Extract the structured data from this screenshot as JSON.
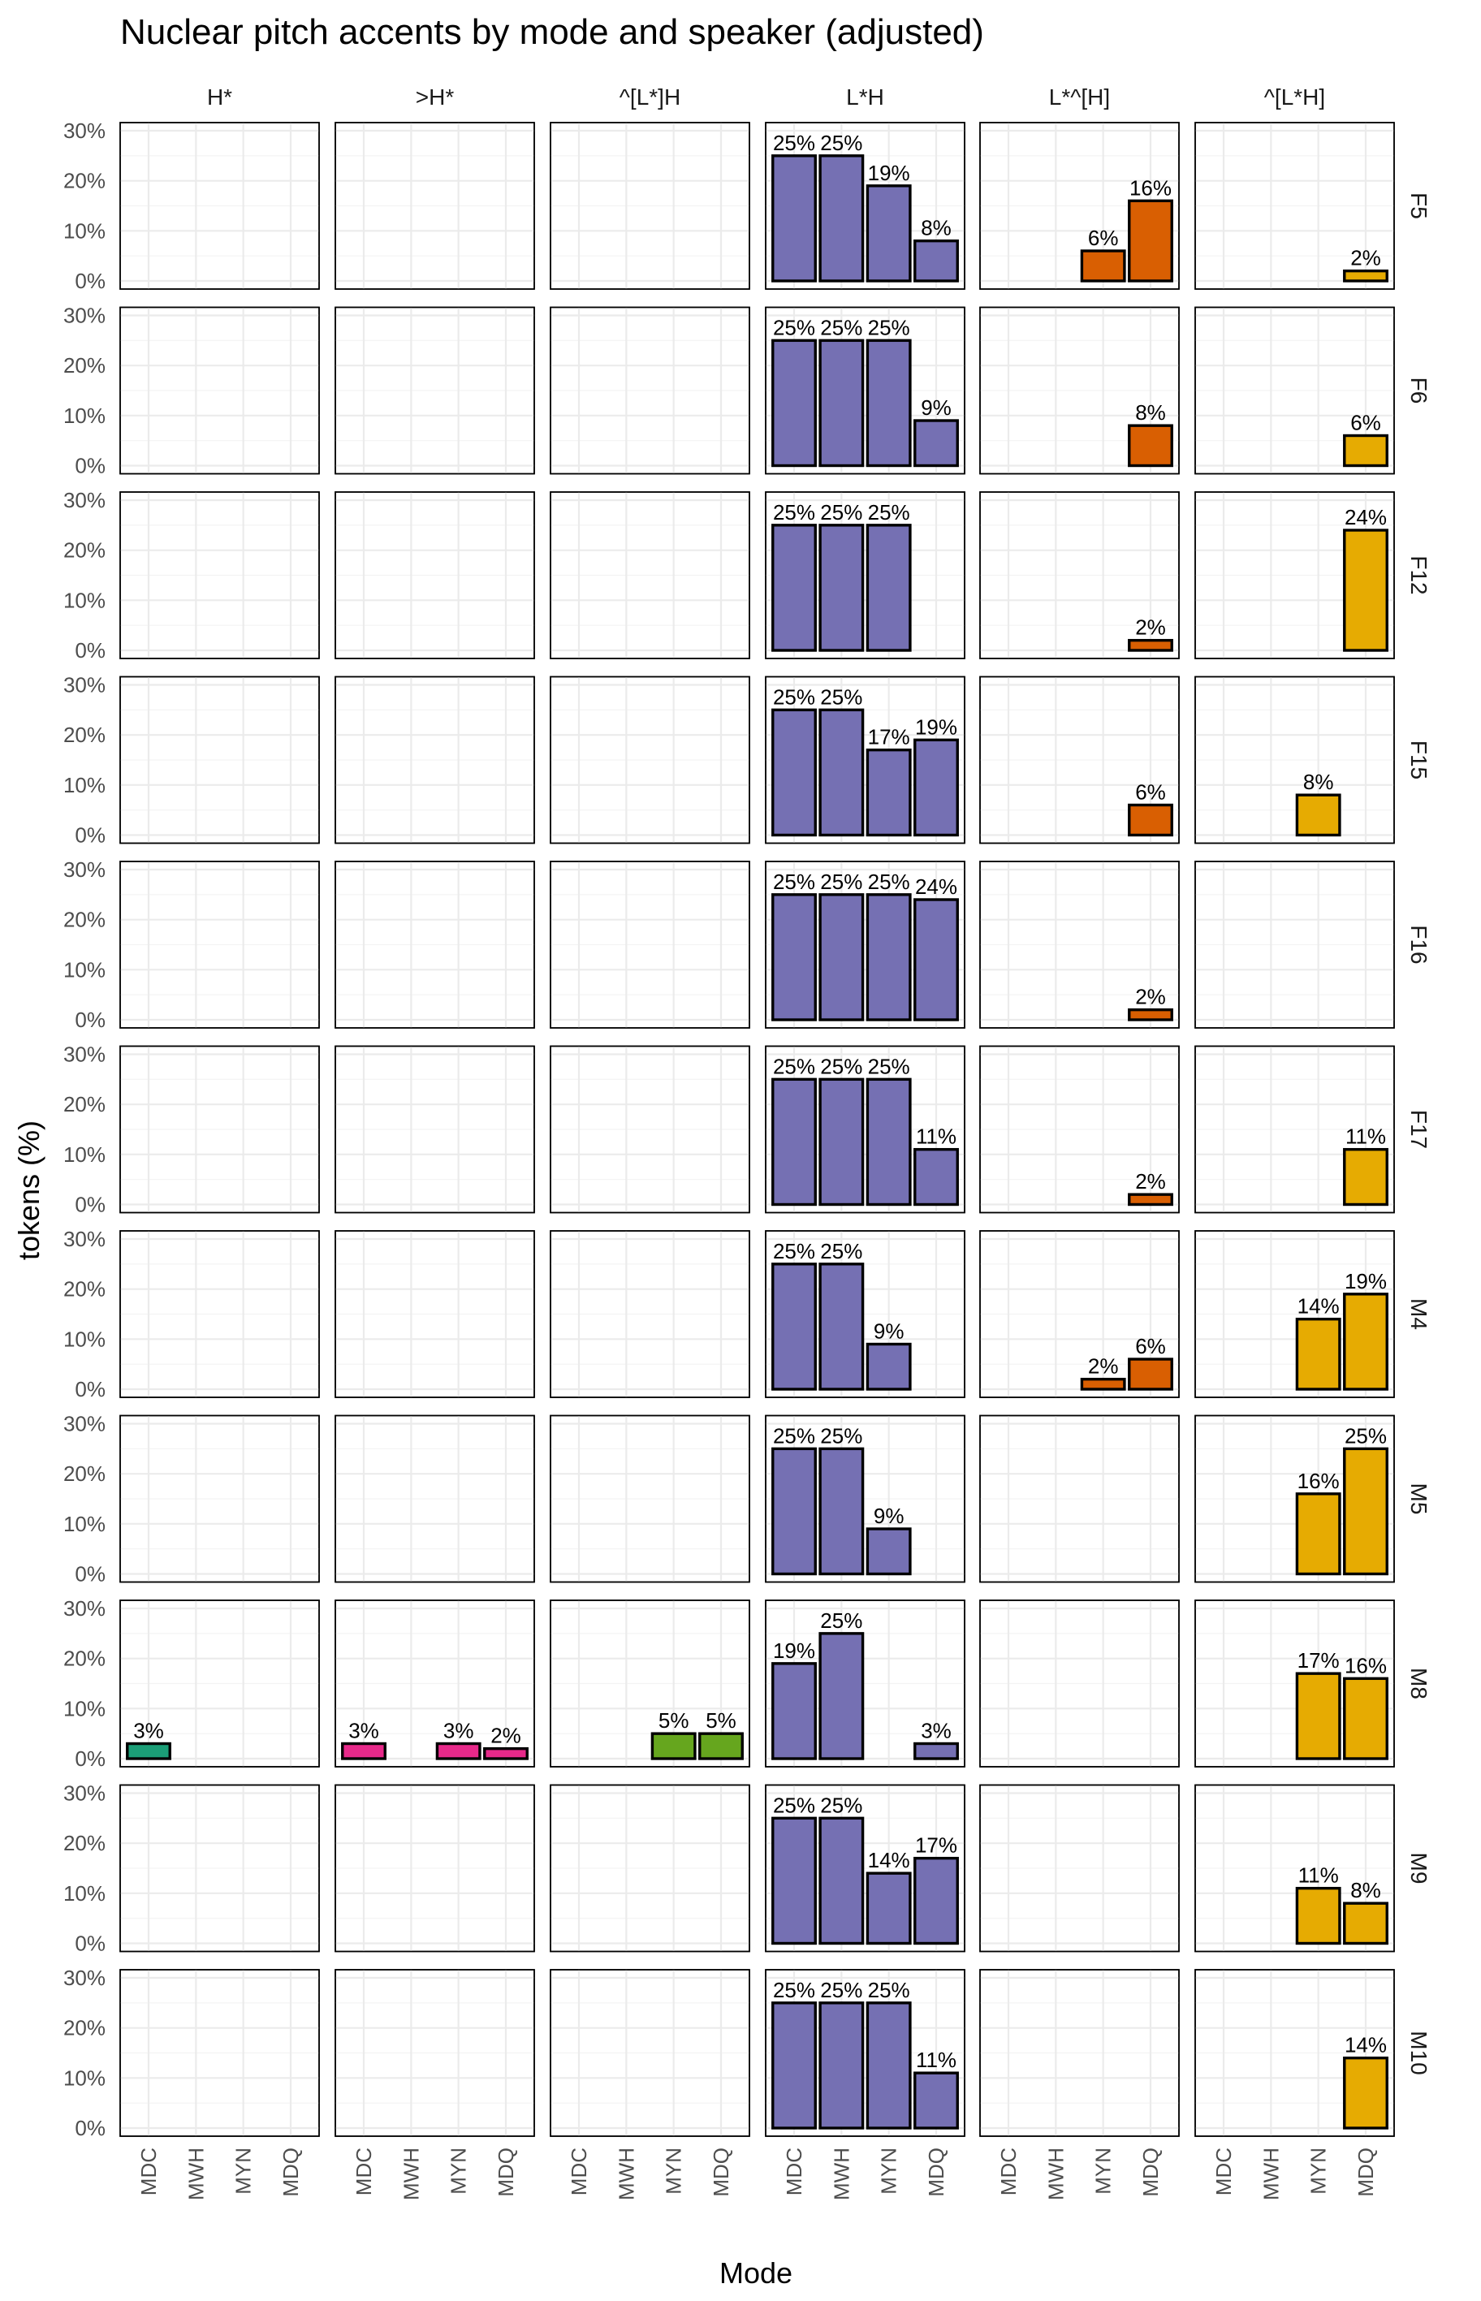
{
  "chart_data": {
    "type": "bar",
    "title": "Nuclear pitch accents by mode and speaker (adjusted)",
    "xlabel": "Mode",
    "ylabel": "tokens (%)",
    "ylim": [
      0,
      30
    ],
    "yticks": [
      "0%",
      "10%",
      "20%",
      "30%"
    ],
    "categories": [
      "MDC",
      "MWH",
      "MYN",
      "MDQ"
    ],
    "columns": [
      "H*",
      ">H*",
      "^[L*]H",
      "L*H",
      "L*^[H]",
      "^[L*H]"
    ],
    "rows": [
      "F5",
      "F6",
      "F12",
      "F15",
      "F16",
      "F17",
      "M4",
      "M5",
      "M8",
      "M9",
      "M10"
    ],
    "colors": {
      "H*": "#1b9e77",
      ">H*": "#e7298a",
      "^[L*]H": "#66a61e",
      "L*H": "#7570b3",
      "L*^[H]": "#d95f02",
      "^[L*H]": "#e6ab02"
    },
    "grid": true,
    "legend": "none",
    "bars": [
      {
        "row": "F5",
        "col": "L*H",
        "mode": "MDC",
        "value": 25,
        "label": "25%"
      },
      {
        "row": "F5",
        "col": "L*H",
        "mode": "MWH",
        "value": 25,
        "label": "25%"
      },
      {
        "row": "F5",
        "col": "L*H",
        "mode": "MYN",
        "value": 19,
        "label": "19%"
      },
      {
        "row": "F5",
        "col": "L*H",
        "mode": "MDQ",
        "value": 8,
        "label": "8%"
      },
      {
        "row": "F5",
        "col": "L*^[H]",
        "mode": "MYN",
        "value": 6,
        "label": "6%"
      },
      {
        "row": "F5",
        "col": "L*^[H]",
        "mode": "MDQ",
        "value": 16,
        "label": "16%"
      },
      {
        "row": "F5",
        "col": "^[L*H]",
        "mode": "MDQ",
        "value": 2,
        "label": "2%"
      },
      {
        "row": "F6",
        "col": "L*H",
        "mode": "MDC",
        "value": 25,
        "label": "25%"
      },
      {
        "row": "F6",
        "col": "L*H",
        "mode": "MWH",
        "value": 25,
        "label": "25%"
      },
      {
        "row": "F6",
        "col": "L*H",
        "mode": "MYN",
        "value": 25,
        "label": "25%"
      },
      {
        "row": "F6",
        "col": "L*H",
        "mode": "MDQ",
        "value": 9,
        "label": "9%"
      },
      {
        "row": "F6",
        "col": "L*^[H]",
        "mode": "MDQ",
        "value": 8,
        "label": "8%"
      },
      {
        "row": "F6",
        "col": "^[L*H]",
        "mode": "MDQ",
        "value": 6,
        "label": "6%"
      },
      {
        "row": "F12",
        "col": "L*H",
        "mode": "MDC",
        "value": 25,
        "label": "25%"
      },
      {
        "row": "F12",
        "col": "L*H",
        "mode": "MWH",
        "value": 25,
        "label": "25%"
      },
      {
        "row": "F12",
        "col": "L*H",
        "mode": "MYN",
        "value": 25,
        "label": "25%"
      },
      {
        "row": "F12",
        "col": "L*^[H]",
        "mode": "MDQ",
        "value": 2,
        "label": "2%"
      },
      {
        "row": "F12",
        "col": "^[L*H]",
        "mode": "MDQ",
        "value": 24,
        "label": "24%"
      },
      {
        "row": "F15",
        "col": "L*H",
        "mode": "MDC",
        "value": 25,
        "label": "25%"
      },
      {
        "row": "F15",
        "col": "L*H",
        "mode": "MWH",
        "value": 25,
        "label": "25%"
      },
      {
        "row": "F15",
        "col": "L*H",
        "mode": "MYN",
        "value": 17,
        "label": "17%"
      },
      {
        "row": "F15",
        "col": "L*H",
        "mode": "MDQ",
        "value": 19,
        "label": "19%"
      },
      {
        "row": "F15",
        "col": "L*^[H]",
        "mode": "MDQ",
        "value": 6,
        "label": "6%"
      },
      {
        "row": "F15",
        "col": "^[L*H]",
        "mode": "MYN",
        "value": 8,
        "label": "8%"
      },
      {
        "row": "F16",
        "col": "L*H",
        "mode": "MDC",
        "value": 25,
        "label": "25%"
      },
      {
        "row": "F16",
        "col": "L*H",
        "mode": "MWH",
        "value": 25,
        "label": "25%"
      },
      {
        "row": "F16",
        "col": "L*H",
        "mode": "MYN",
        "value": 25,
        "label": "25%"
      },
      {
        "row": "F16",
        "col": "L*H",
        "mode": "MDQ",
        "value": 24,
        "label": "24%"
      },
      {
        "row": "F16",
        "col": "L*^[H]",
        "mode": "MDQ",
        "value": 2,
        "label": "2%"
      },
      {
        "row": "F17",
        "col": "L*H",
        "mode": "MDC",
        "value": 25,
        "label": "25%"
      },
      {
        "row": "F17",
        "col": "L*H",
        "mode": "MWH",
        "value": 25,
        "label": "25%"
      },
      {
        "row": "F17",
        "col": "L*H",
        "mode": "MYN",
        "value": 25,
        "label": "25%"
      },
      {
        "row": "F17",
        "col": "L*H",
        "mode": "MDQ",
        "value": 11,
        "label": "11%"
      },
      {
        "row": "F17",
        "col": "L*^[H]",
        "mode": "MDQ",
        "value": 2,
        "label": "2%"
      },
      {
        "row": "F17",
        "col": "^[L*H]",
        "mode": "MDQ",
        "value": 11,
        "label": "11%"
      },
      {
        "row": "M4",
        "col": "L*H",
        "mode": "MDC",
        "value": 25,
        "label": "25%"
      },
      {
        "row": "M4",
        "col": "L*H",
        "mode": "MWH",
        "value": 25,
        "label": "25%"
      },
      {
        "row": "M4",
        "col": "L*H",
        "mode": "MYN",
        "value": 9,
        "label": "9%"
      },
      {
        "row": "M4",
        "col": "L*^[H]",
        "mode": "MYN",
        "value": 2,
        "label": "2%"
      },
      {
        "row": "M4",
        "col": "L*^[H]",
        "mode": "MDQ",
        "value": 6,
        "label": "6%"
      },
      {
        "row": "M4",
        "col": "^[L*H]",
        "mode": "MYN",
        "value": 14,
        "label": "14%"
      },
      {
        "row": "M4",
        "col": "^[L*H]",
        "mode": "MDQ",
        "value": 19,
        "label": "19%"
      },
      {
        "row": "M5",
        "col": "L*H",
        "mode": "MDC",
        "value": 25,
        "label": "25%"
      },
      {
        "row": "M5",
        "col": "L*H",
        "mode": "MWH",
        "value": 25,
        "label": "25%"
      },
      {
        "row": "M5",
        "col": "L*H",
        "mode": "MYN",
        "value": 9,
        "label": "9%"
      },
      {
        "row": "M5",
        "col": "^[L*H]",
        "mode": "MYN",
        "value": 16,
        "label": "16%"
      },
      {
        "row": "M5",
        "col": "^[L*H]",
        "mode": "MDQ",
        "value": 25,
        "label": "25%"
      },
      {
        "row": "M8",
        "col": "H*",
        "mode": "MDC",
        "value": 3,
        "label": "3%"
      },
      {
        "row": "M8",
        "col": ">H*",
        "mode": "MDC",
        "value": 3,
        "label": "3%"
      },
      {
        "row": "M8",
        "col": ">H*",
        "mode": "MYN",
        "value": 3,
        "label": "3%"
      },
      {
        "row": "M8",
        "col": ">H*",
        "mode": "MDQ",
        "value": 2,
        "label": "2%"
      },
      {
        "row": "M8",
        "col": "^[L*]H",
        "mode": "MYN",
        "value": 5,
        "label": "5%"
      },
      {
        "row": "M8",
        "col": "^[L*]H",
        "mode": "MDQ",
        "value": 5,
        "label": "5%"
      },
      {
        "row": "M8",
        "col": "L*H",
        "mode": "MDC",
        "value": 19,
        "label": "19%"
      },
      {
        "row": "M8",
        "col": "L*H",
        "mode": "MWH",
        "value": 25,
        "label": "25%"
      },
      {
        "row": "M8",
        "col": "L*H",
        "mode": "MDQ",
        "value": 3,
        "label": "3%"
      },
      {
        "row": "M8",
        "col": "^[L*H]",
        "mode": "MYN",
        "value": 17,
        "label": "17%"
      },
      {
        "row": "M8",
        "col": "^[L*H]",
        "mode": "MDQ",
        "value": 16,
        "label": "16%"
      },
      {
        "row": "M9",
        "col": "L*H",
        "mode": "MDC",
        "value": 25,
        "label": "25%"
      },
      {
        "row": "M9",
        "col": "L*H",
        "mode": "MWH",
        "value": 25,
        "label": "25%"
      },
      {
        "row": "M9",
        "col": "L*H",
        "mode": "MYN",
        "value": 14,
        "label": "14%"
      },
      {
        "row": "M9",
        "col": "L*H",
        "mode": "MDQ",
        "value": 17,
        "label": "17%"
      },
      {
        "row": "M9",
        "col": "^[L*H]",
        "mode": "MYN",
        "value": 11,
        "label": "11%"
      },
      {
        "row": "M9",
        "col": "^[L*H]",
        "mode": "MDQ",
        "value": 8,
        "label": "8%"
      },
      {
        "row": "M10",
        "col": "L*H",
        "mode": "MDC",
        "value": 25,
        "label": "25%"
      },
      {
        "row": "M10",
        "col": "L*H",
        "mode": "MWH",
        "value": 25,
        "label": "25%"
      },
      {
        "row": "M10",
        "col": "L*H",
        "mode": "MYN",
        "value": 25,
        "label": "25%"
      },
      {
        "row": "M10",
        "col": "L*H",
        "mode": "MDQ",
        "value": 11,
        "label": "11%"
      },
      {
        "row": "M10",
        "col": "^[L*H]",
        "mode": "MDQ",
        "value": 14,
        "label": "14%"
      }
    ]
  }
}
